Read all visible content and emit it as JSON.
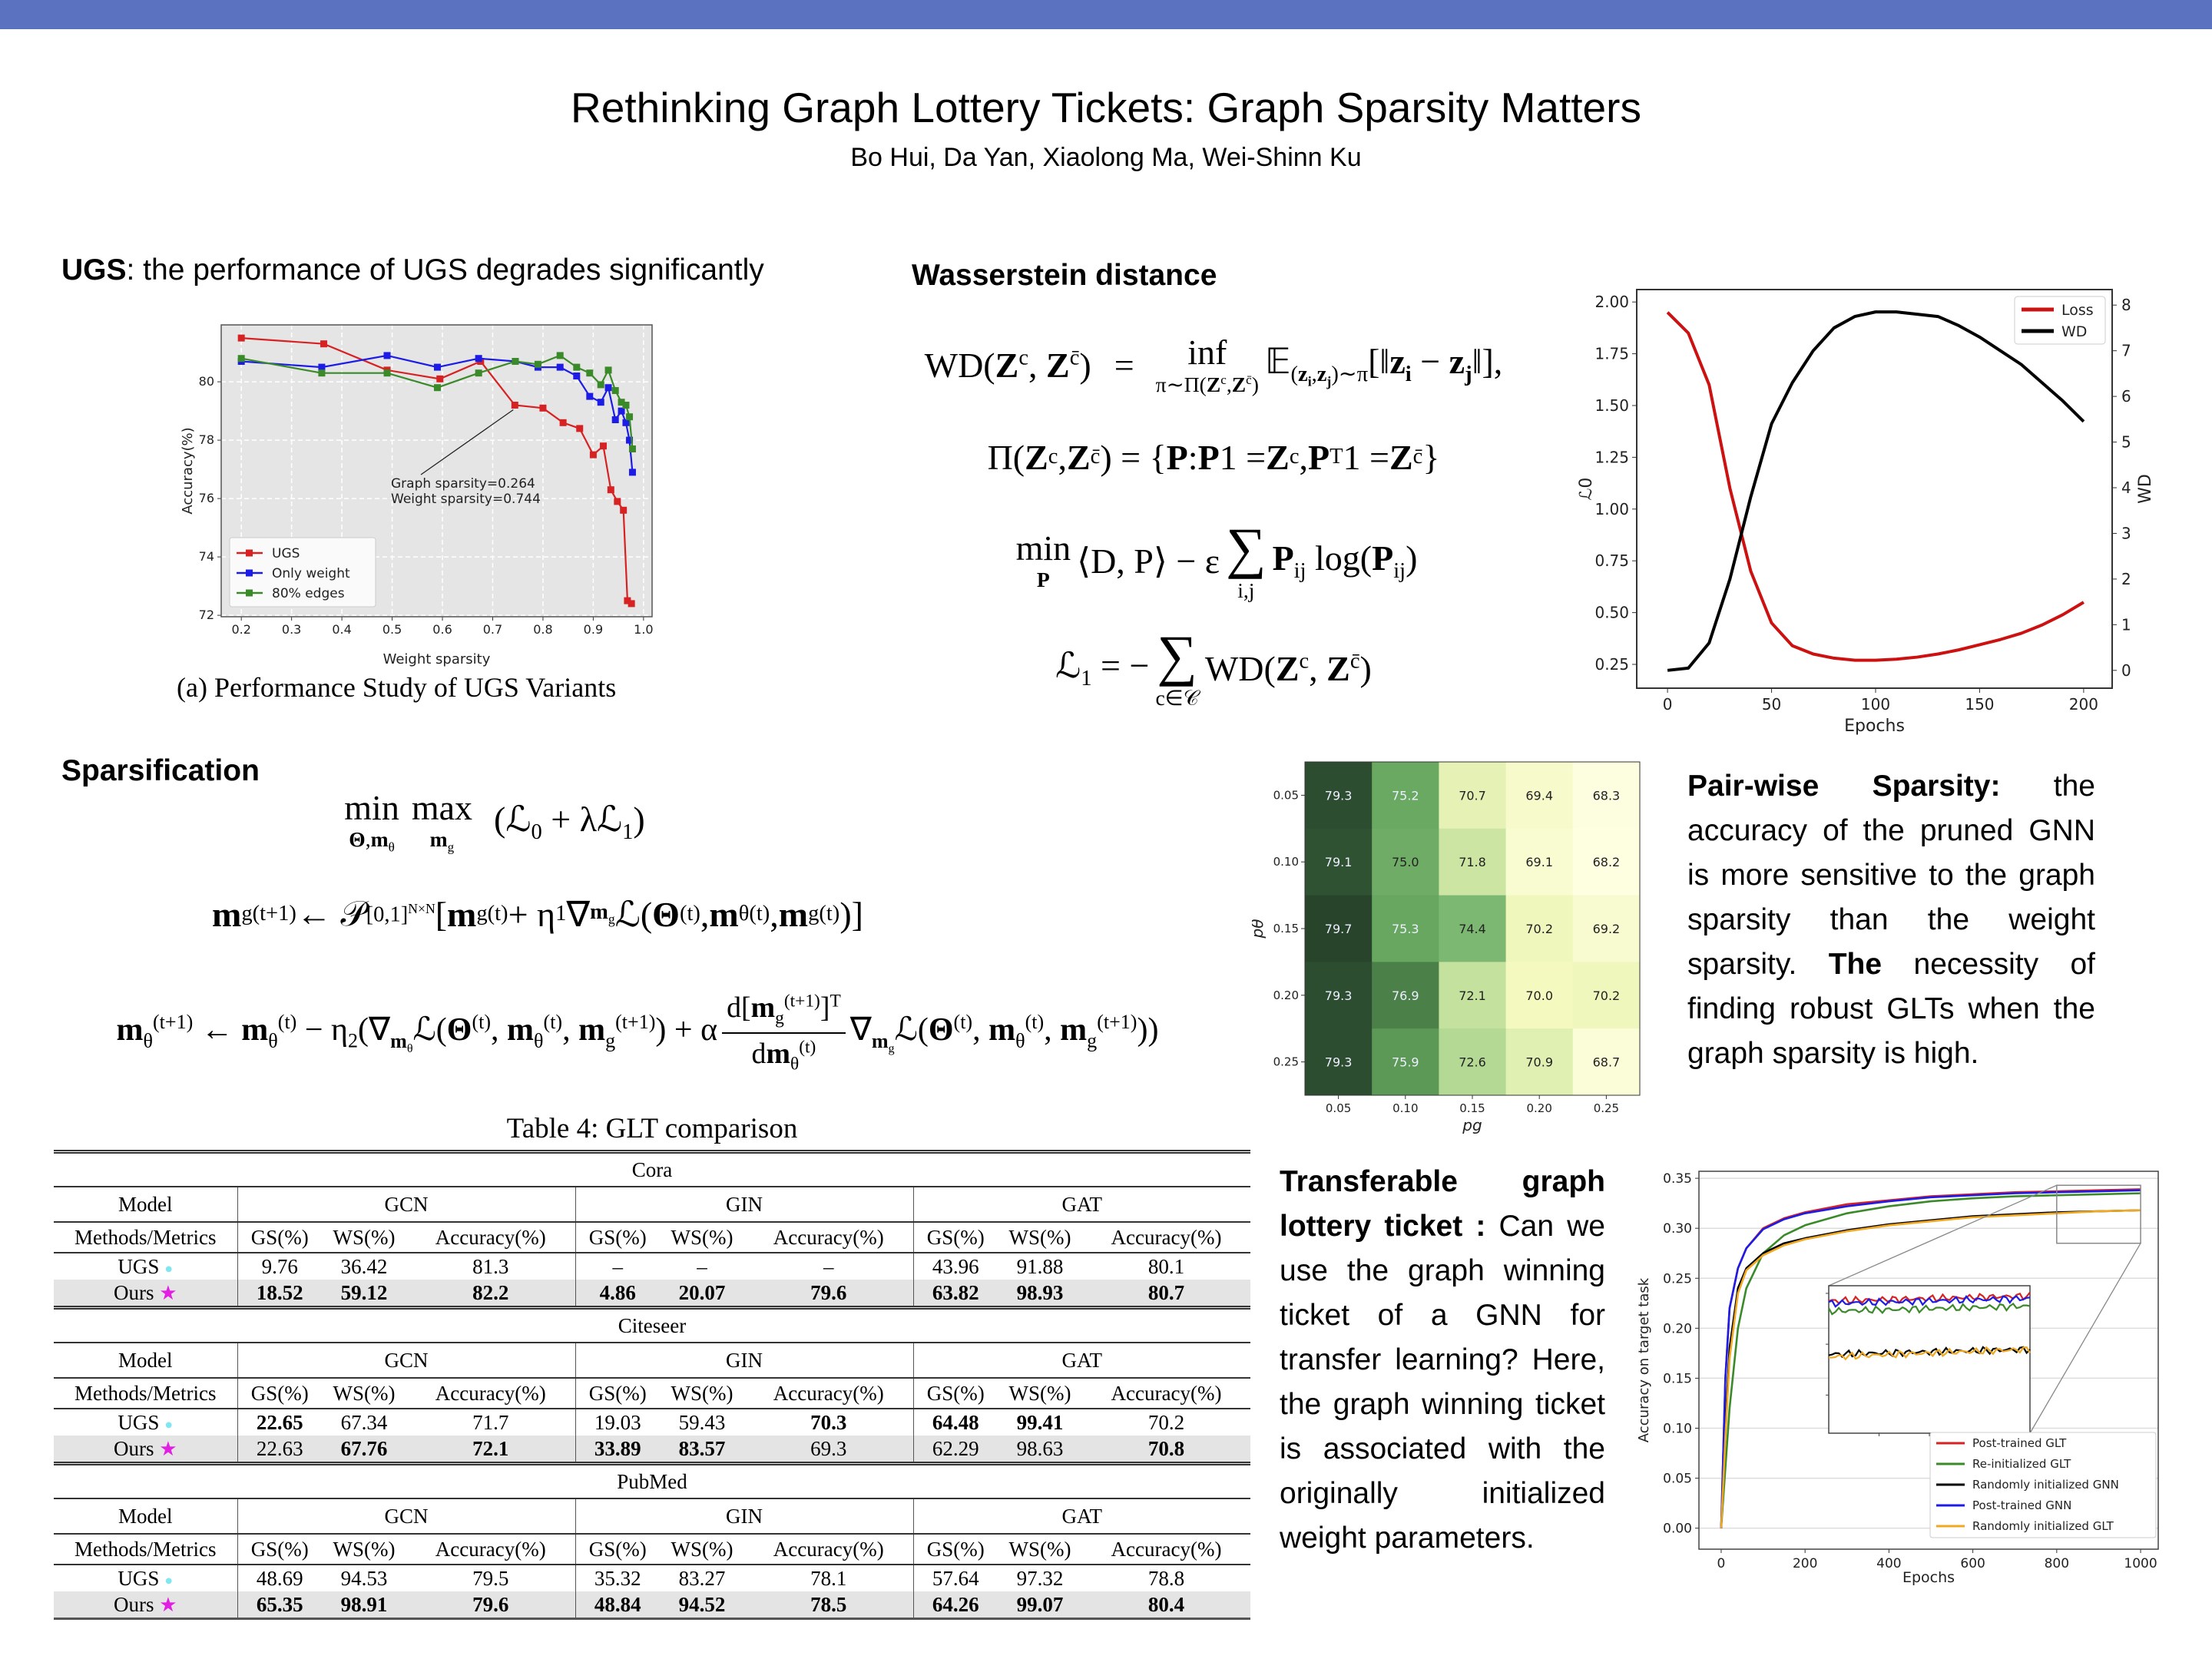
{
  "header": {
    "title": "Rethinking Graph Lottery Tickets: Graph Sparsity Matters",
    "authors": "Bo Hui, Da Yan, Xiaolong Ma, Wei-Shinn Ku",
    "bar_color": "#5b72c1"
  },
  "ugs_section": {
    "heading_bold": "UGS",
    "heading_rest": ": the performance of UGS degrades significantly",
    "caption": "(a) Performance Study of UGS Variants"
  },
  "wd_section": {
    "heading": "Wasserstein distance",
    "eq1": {
      "lhs": "WD(!{Z}^{c}, !{Z}^{c̄})",
      "eq": "=",
      "op": "inf",
      "under": "π∼Π(!{Z}^{c},!{Z}^{c̄})",
      "rhs": "𝔼_{(!{z}_{!{i}},!{z}_{!{j}})∼π}[‖!{z}_{!{i}} − !{z}_{!{j}}‖],"
    },
    "eq2": "Π(!{Z}^{c}, !{Z}^{c̄}) = {!{P} : !{P}1 = !{Z}^{c}, !{P}^{T}1 = !{Z}^{c̄}}",
    "eq3": {
      "op": "min",
      "under": "!{P}",
      "mid": "⟨D, P⟩ − ε",
      "sum": "∑",
      "sum_under": "i,j",
      "rest": "!{P}_{ij} log(!{P}_{ij})"
    },
    "eq4": {
      "lhs": "ℒ_{1} = −",
      "sum": "∑",
      "sum_under": "c∈𝒞",
      "rest": "WD(!{Z}^{c}, !{Z}^{c̄})"
    }
  },
  "sparsification": {
    "heading": "Sparsification",
    "eq1": {
      "op1": "min",
      "under1": "!{Θ},!{m}_{θ}",
      "op2": "max",
      "under2": "!{m}_{g}",
      "rest": "(ℒ_{0} + λℒ_{1})"
    },
    "eq2": "!{m}_{g}^{(t+1)} ← 𝒫_{[0,1]^{N×N}} [!{m}_{g}^{(t)} + η_{1}∇_{!{m}_{g}}ℒ(!{Θ}^{(t)}, !{m}_{θ}^{(t)}, !{m}_{g}^{(t)})]",
    "eq3": {
      "left": "!{m}_{θ}^{(t+1)} ← !{m}_{θ}^{(t)} − η_{2}(∇_{!{m}_{θ}}ℒ(!{Θ}^{(t)}, !{m}_{θ}^{(t)}, !{m}_{g}^{(t+1)}) + α",
      "num": "d[!{m}_{g}^{(t+1)}]^{T}",
      "den": "d!{m}_{θ}^{(t)}",
      "right": "∇_{!{m}_{g}}ℒ(!{Θ}^{(t)}, !{m}_{θ}^{(t)}, !{m}_{g}^{(t+1)}))"
    }
  },
  "table": {
    "caption": "Table 4: GLT comparison",
    "model_label": "Model",
    "methods_label": "Methods/Metrics",
    "models": [
      "GCN",
      "GIN",
      "GAT"
    ],
    "metrics": [
      "GS(%)",
      "WS(%)",
      "Accuracy(%)"
    ],
    "ugs_icon": "cyan-dot-icon",
    "ours_icon": "magenta-star-icon",
    "blocks": [
      {
        "dataset": "Cora",
        "rows": [
          {
            "method": "UGS",
            "cells": [
              "9.76",
              "36.42",
              "81.3",
              "–",
              "–",
              "–",
              "43.96",
              "91.88",
              "80.1"
            ],
            "bold": [
              0,
              0,
              0,
              0,
              0,
              0,
              0,
              0,
              0
            ]
          },
          {
            "method": "Ours",
            "cells": [
              "18.52",
              "59.12",
              "82.2",
              "4.86",
              "20.07",
              "79.6",
              "63.82",
              "98.93",
              "80.7"
            ],
            "bold": [
              1,
              1,
              1,
              1,
              1,
              1,
              1,
              1,
              1
            ]
          }
        ]
      },
      {
        "dataset": "Citeseer",
        "rows": [
          {
            "method": "UGS",
            "cells": [
              "22.65",
              "67.34",
              "71.7",
              "19.03",
              "59.43",
              "70.3",
              "64.48",
              "99.41",
              "70.2"
            ],
            "bold": [
              1,
              0,
              0,
              0,
              0,
              1,
              1,
              1,
              0
            ]
          },
          {
            "method": "Ours",
            "cells": [
              "22.63",
              "67.76",
              "72.1",
              "33.89",
              "83.57",
              "69.3",
              "62.29",
              "98.63",
              "70.8"
            ],
            "bold": [
              0,
              1,
              1,
              1,
              1,
              0,
              0,
              0,
              1
            ]
          }
        ]
      },
      {
        "dataset": "PubMed",
        "rows": [
          {
            "method": "UGS",
            "cells": [
              "48.69",
              "94.53",
              "79.5",
              "35.32",
              "83.27",
              "78.1",
              "57.64",
              "97.32",
              "78.8"
            ],
            "bold": [
              0,
              0,
              0,
              0,
              0,
              0,
              0,
              0,
              0
            ]
          },
          {
            "method": "Ours",
            "cells": [
              "65.35",
              "98.91",
              "79.6",
              "48.84",
              "94.52",
              "78.5",
              "64.26",
              "99.07",
              "80.4"
            ],
            "bold": [
              1,
              1,
              1,
              1,
              1,
              1,
              1,
              1,
              1
            ]
          }
        ]
      }
    ]
  },
  "pairwise": {
    "heading": "Pair-wise Sparsity:",
    "text1": "the accuracy of the pruned GNN is more sensitive to the graph sparsity than the weight sparsity.",
    "bold2": "The",
    "text2": "necessity of finding robust GLTs when the graph sparsity is high."
  },
  "transfer": {
    "heading": "Transferable graph lottery ticket :",
    "text": "Can we use the graph winning ticket of a GNN for transfer learning? Here, the graph winning ticket is associated with the originally initialized weight parameters."
  },
  "chart_data": [
    {
      "type": "line",
      "xlabel": "Weight sparsity",
      "ylabel": "Accuracy(%)",
      "xlim": [
        0.16,
        1.017
      ],
      "ylim": [
        71.95,
        81.95
      ],
      "xticks": [
        "0.2",
        "0.3",
        "0.4",
        "0.5",
        "0.6",
        "0.7",
        "0.8",
        "0.9",
        "1.0"
      ],
      "yticks": [
        "72",
        "74",
        "76",
        "78",
        "80"
      ],
      "grid": true,
      "legend": "lower-left",
      "annotation": [
        "Graph sparsity=0.264",
        "Weight sparsity=0.744"
      ],
      "annotation_point": [
        0.744,
        79.2
      ],
      "series": [
        {
          "name": "UGS",
          "color": "#d62222",
          "x": [
            0.2,
            0.364,
            0.49,
            0.595,
            0.676,
            0.744,
            0.8,
            0.84,
            0.873,
            0.9,
            0.92,
            0.935,
            0.948,
            0.96,
            0.968,
            0.976
          ],
          "y": [
            81.5,
            81.3,
            80.4,
            80.1,
            80.7,
            79.2,
            79.1,
            78.6,
            78.4,
            77.5,
            77.8,
            76.3,
            75.9,
            75.6,
            72.5,
            72.4
          ]
        },
        {
          "name": "Only weight",
          "color": "#1c1ce6",
          "x": [
            0.2,
            0.36,
            0.49,
            0.59,
            0.672,
            0.745,
            0.79,
            0.834,
            0.867,
            0.893,
            0.915,
            0.93,
            0.944,
            0.956,
            0.965,
            0.972,
            0.978
          ],
          "y": [
            80.7,
            80.5,
            80.9,
            80.5,
            80.8,
            80.7,
            80.5,
            80.5,
            80.2,
            79.5,
            79.3,
            79.8,
            78.7,
            79.0,
            78.6,
            78.0,
            76.9
          ]
        },
        {
          "name": "80% edges",
          "color": "#3a8a2a",
          "x": [
            0.2,
            0.36,
            0.49,
            0.59,
            0.672,
            0.745,
            0.79,
            0.834,
            0.867,
            0.893,
            0.915,
            0.93,
            0.944,
            0.956,
            0.965,
            0.972,
            0.978
          ],
          "y": [
            80.8,
            80.3,
            80.3,
            79.8,
            80.3,
            80.7,
            80.6,
            80.9,
            80.5,
            80.3,
            79.9,
            80.4,
            79.7,
            79.3,
            79.2,
            78.8,
            77.7
          ]
        }
      ]
    },
    {
      "type": "line",
      "xlabel": "Epochs",
      "ylabel": "ℒ0",
      "ylabel_right": "WD",
      "xlim": [
        -14.8,
        213.7
      ],
      "ylim": [
        0.135,
        2.06
      ],
      "ylim_right": [
        -0.39,
        8.34
      ],
      "xticks": [
        "0",
        "50",
        "100",
        "150",
        "200"
      ],
      "yticks": [
        "0.25",
        "0.50",
        "0.75",
        "1.00",
        "1.25",
        "1.50",
        "1.75",
        "2.00"
      ],
      "yticks_right": [
        "0",
        "1",
        "2",
        "3",
        "4",
        "5",
        "6",
        "7",
        "8"
      ],
      "legend": "top-right",
      "x": [
        0,
        10,
        20,
        30,
        40,
        50,
        60,
        70,
        80,
        90,
        100,
        110,
        120,
        130,
        140,
        150,
        160,
        170,
        180,
        190,
        200
      ],
      "series": [
        {
          "name": "Loss",
          "axis": "left",
          "color": "#cc1111",
          "y": [
            1.95,
            1.85,
            1.6,
            1.1,
            0.7,
            0.45,
            0.34,
            0.3,
            0.28,
            0.27,
            0.27,
            0.275,
            0.285,
            0.3,
            0.32,
            0.345,
            0.37,
            0.4,
            0.44,
            0.49,
            0.55
          ]
        },
        {
          "name": "WD",
          "axis": "right",
          "color": "#000000",
          "y": [
            0,
            0.05,
            0.6,
            2.0,
            3.8,
            5.4,
            6.3,
            7.0,
            7.5,
            7.75,
            7.85,
            7.85,
            7.8,
            7.75,
            7.55,
            7.3,
            7.0,
            6.7,
            6.3,
            5.9,
            5.45
          ]
        }
      ]
    },
    {
      "type": "heatmap",
      "xlabel": "pg",
      "ylabel": "pθ",
      "x": [
        "0.05",
        "0.10",
        "0.15",
        "0.20",
        "0.25"
      ],
      "y": [
        "0.05",
        "0.10",
        "0.15",
        "0.20",
        "0.25"
      ],
      "values": [
        [
          79.3,
          75.2,
          70.7,
          69.4,
          68.3
        ],
        [
          79.1,
          75.0,
          71.8,
          69.1,
          68.2
        ],
        [
          79.7,
          75.3,
          74.4,
          70.2,
          69.2
        ],
        [
          79.3,
          76.9,
          72.1,
          70.0,
          70.2
        ],
        [
          79.3,
          75.9,
          72.6,
          70.9,
          68.7
        ]
      ]
    },
    {
      "type": "line",
      "xlabel": "Epochs",
      "ylabel": "Accuracy on target task",
      "xlim": [
        -53,
        1042
      ],
      "ylim": [
        -0.021,
        0.357
      ],
      "xticks": [
        "0",
        "200",
        "400",
        "600",
        "800",
        "1000"
      ],
      "yticks": [
        "0.00",
        "0.05",
        "0.10",
        "0.15",
        "0.20",
        "0.25",
        "0.30",
        "0.35"
      ],
      "legend": "lower-right",
      "inset_zoom": {
        "xlim": [
          800,
          1000
        ],
        "ylim": [
          0.285,
          0.343
        ]
      },
      "x": [
        0,
        10,
        20,
        40,
        60,
        100,
        150,
        200,
        300,
        400,
        500,
        600,
        700,
        800,
        900,
        1000
      ],
      "series": [
        {
          "name": "Post-trained GLT",
          "color": "#d62222",
          "y": [
            0,
            0.15,
            0.22,
            0.26,
            0.28,
            0.3,
            0.31,
            0.316,
            0.324,
            0.328,
            0.332,
            0.334,
            0.336,
            0.337,
            0.338,
            0.339
          ]
        },
        {
          "name": "Re-initialized GLT",
          "color": "#3a8a2a",
          "y": [
            0,
            0.06,
            0.12,
            0.2,
            0.24,
            0.275,
            0.293,
            0.303,
            0.315,
            0.322,
            0.327,
            0.33,
            0.332,
            0.333,
            0.334,
            0.335
          ]
        },
        {
          "name": "Randomly initialized GNN",
          "color": "#000000",
          "y": [
            0,
            0.1,
            0.18,
            0.24,
            0.26,
            0.275,
            0.285,
            0.29,
            0.298,
            0.304,
            0.308,
            0.312,
            0.314,
            0.316,
            0.317,
            0.318
          ]
        },
        {
          "name": "Post-trained GNN",
          "color": "#1c1ce6",
          "y": [
            0,
            0.15,
            0.22,
            0.26,
            0.28,
            0.299,
            0.309,
            0.315,
            0.322,
            0.327,
            0.331,
            0.333,
            0.335,
            0.336,
            0.337,
            0.338
          ]
        },
        {
          "name": "Randomly initialized GLT",
          "color": "#f0a820",
          "y": [
            0,
            0.09,
            0.17,
            0.235,
            0.258,
            0.273,
            0.283,
            0.289,
            0.297,
            0.303,
            0.307,
            0.311,
            0.313,
            0.315,
            0.317,
            0.318
          ]
        }
      ]
    }
  ]
}
